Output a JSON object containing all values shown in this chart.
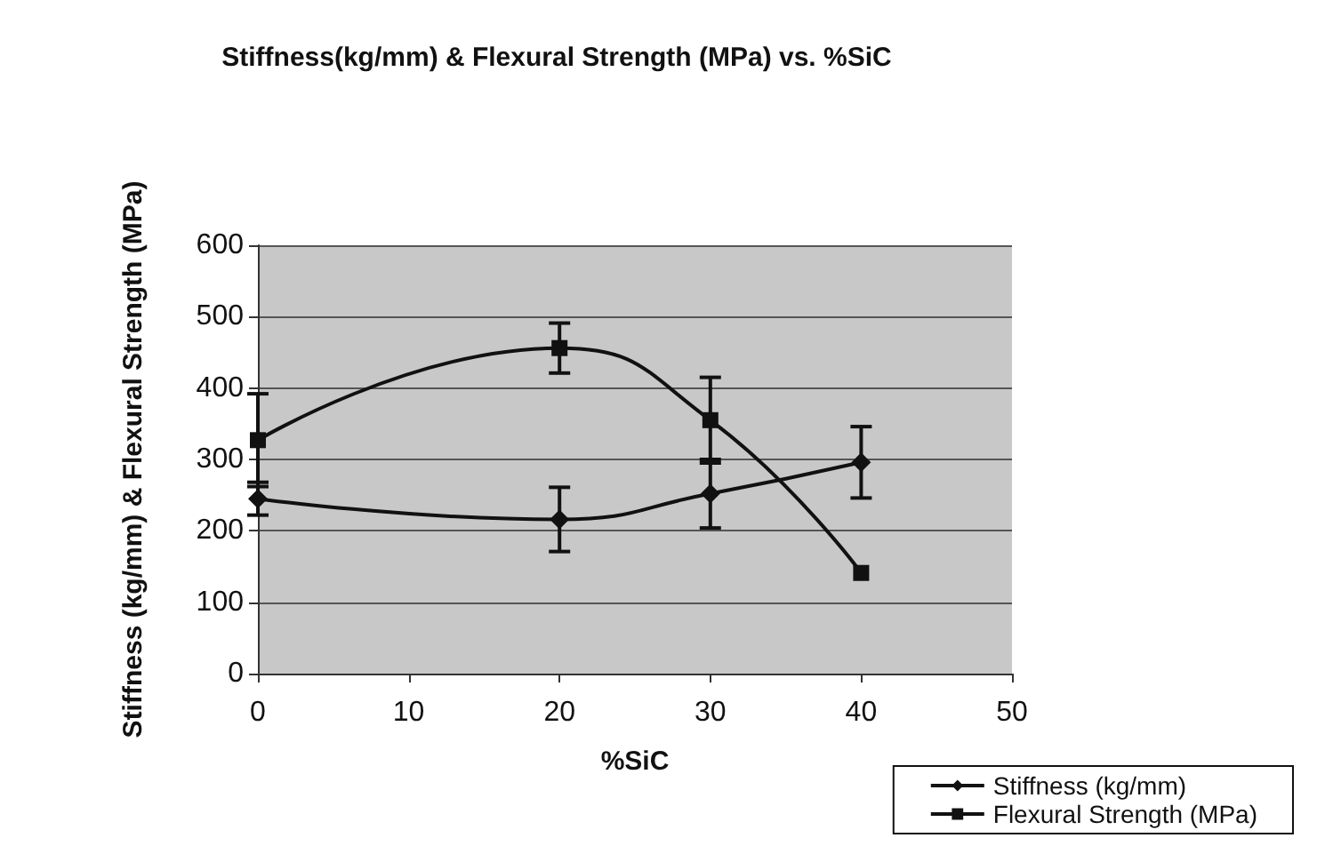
{
  "chart_data": {
    "type": "line",
    "title": "Stiffness(kg/mm) & Flexural Strength (MPa) vs. %SiC",
    "xlabel": "%SiC",
    "ylabel": "Stiffness (kg/mm) & Flexural Strength (MPa)",
    "x": [
      0,
      20,
      30,
      40
    ],
    "series": [
      {
        "name": "Stiffness (kg/mm)",
        "color": "#111111",
        "marker": "diamond",
        "values": [
          245,
          216,
          252,
          296
        ],
        "errors": [
          23,
          45,
          48,
          50
        ]
      },
      {
        "name": "Flexural Strength (MPa)",
        "color": "#111111",
        "marker": "square",
        "values": [
          327,
          456,
          355,
          141
        ],
        "errors": [
          65,
          35,
          60,
          null
        ]
      }
    ],
    "xlim": [
      0,
      50
    ],
    "xticks": [
      0,
      10,
      20,
      30,
      40,
      50
    ],
    "ylim": [
      0,
      600
    ],
    "yticks": [
      0,
      100,
      200,
      300,
      400,
      500,
      600
    ],
    "grid": "y",
    "legend": "bottom right",
    "line_style": "solid"
  }
}
